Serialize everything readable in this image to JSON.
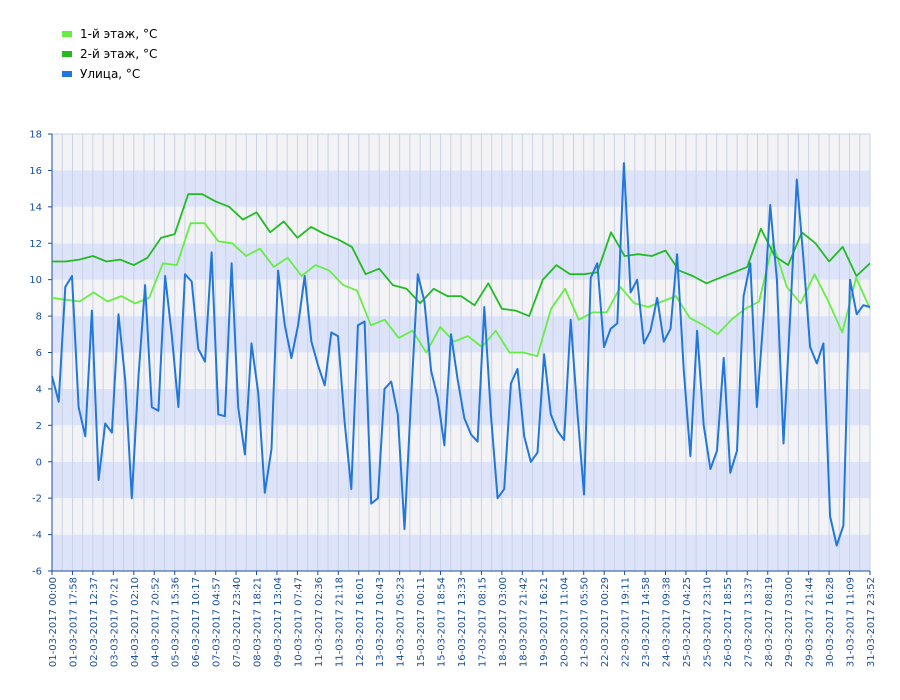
{
  "chart_data": {
    "type": "line",
    "title": "",
    "xlabel": "",
    "ylabel": "",
    "ylim": [
      -6,
      18
    ],
    "y_ticks": [
      -6,
      -4,
      -2,
      0,
      2,
      4,
      6,
      8,
      10,
      12,
      14,
      16,
      18
    ],
    "grid": true,
    "legend_position": "top-left",
    "x_tick_labels": [
      "01-03-2017 00:00",
      "01-03-2017 17:58",
      "02-03-2017 12:37",
      "03-03-2017 07:21",
      "04-03-2017 02:10",
      "04-03-2017 20:52",
      "05-03-2017 15:36",
      "06-03-2017 10:17",
      "07-03-2017 04:57",
      "07-03-2017 23:40",
      "08-03-2017 18:21",
      "09-03-2017 13:04",
      "10-03-2017 07:47",
      "11-03-2017 02:36",
      "11-03-2017 21:18",
      "12-03-2017 16:01",
      "13-03-2017 10:43",
      "14-03-2017 05:23",
      "15-03-2017 00:11",
      "15-03-2017 18:54",
      "16-03-2017 13:33",
      "17-03-2017 08:15",
      "18-03-2017 03:00",
      "18-03-2017 21:42",
      "19-03-2017 16:21",
      "20-03-2017 11:04",
      "21-03-2017 05:50",
      "22-03-2017 00:29",
      "22-03-2017 19:11",
      "23-03-2017 14:58",
      "24-03-2017 09:38",
      "25-03-2017 04:25",
      "25-03-2017 23:10",
      "26-03-2017 18:55",
      "27-03-2017 13:37",
      "28-03-2017 08:19",
      "29-03-2017 03:00",
      "29-03-2017 21:44",
      "30-03-2017 16:28",
      "31-03-2017 11:09",
      "31-03-2017 23:52"
    ],
    "series": [
      {
        "name": "1-й этаж, °C",
        "color": "#66ee44",
        "values": [
          9.0,
          8.9,
          8.8,
          9.3,
          8.8,
          9.1,
          8.7,
          9.0,
          10.9,
          10.8,
          13.1,
          13.1,
          12.1,
          12.0,
          11.3,
          11.7,
          10.7,
          11.2,
          10.2,
          10.8,
          10.5,
          9.7,
          9.4,
          7.5,
          7.8,
          6.8,
          7.2,
          6.0,
          7.4,
          6.6,
          6.9,
          6.3,
          7.2,
          6.0,
          6.0,
          5.8,
          8.4,
          9.5,
          7.8,
          8.2,
          8.2,
          9.6,
          8.7,
          8.5,
          8.8,
          9.1,
          7.9,
          7.5,
          7.0,
          7.8,
          8.4,
          8.8,
          12.0,
          9.6,
          8.7,
          10.3,
          8.8,
          7.1,
          10.1,
          8.4
        ]
      },
      {
        "name": "2-й этаж, °C",
        "color": "#22bb22",
        "values": [
          11.0,
          11.0,
          11.1,
          11.3,
          11.0,
          11.1,
          10.8,
          11.2,
          12.3,
          12.5,
          14.7,
          14.7,
          14.3,
          14.0,
          13.3,
          13.7,
          12.6,
          13.2,
          12.3,
          12.9,
          12.5,
          12.2,
          11.8,
          10.3,
          10.6,
          9.7,
          9.5,
          8.7,
          9.5,
          9.1,
          9.1,
          8.6,
          9.8,
          8.4,
          8.3,
          8.0,
          10.0,
          10.8,
          10.3,
          10.3,
          10.4,
          12.6,
          11.3,
          11.4,
          11.3,
          11.6,
          10.5,
          10.2,
          9.8,
          10.1,
          10.4,
          10.7,
          12.8,
          11.3,
          10.8,
          12.6,
          12.0,
          11.0,
          11.8,
          10.2,
          10.9
        ]
      },
      {
        "name": "Улица, °C",
        "color": "#2277dd",
        "values": [
          4.7,
          3.3,
          9.6,
          10.2,
          3.0,
          1.4,
          8.3,
          -1.0,
          2.1,
          1.6,
          8.1,
          4.5,
          -2.0,
          4.7,
          9.7,
          3.0,
          2.8,
          10.2,
          7.0,
          3.0,
          10.3,
          9.9,
          6.2,
          5.5,
          11.5,
          2.6,
          2.5,
          10.9,
          3.0,
          0.4,
          6.5,
          3.8,
          -1.7,
          0.7,
          10.5,
          7.5,
          5.7,
          7.5,
          10.2,
          6.6,
          5.3,
          4.2,
          7.1,
          6.9,
          2.2,
          -1.5,
          7.5,
          7.7,
          -2.3,
          -2.0,
          4.0,
          4.4,
          2.6,
          -3.7,
          3.5,
          10.3,
          8.8,
          5.0,
          3.5,
          0.9,
          7.0,
          4.5,
          2.4,
          1.5,
          1.1,
          8.5,
          2.6,
          -2.0,
          -1.5,
          4.3,
          5.1,
          1.4,
          0.0,
          0.5,
          5.9,
          2.6,
          1.7,
          1.2,
          7.8,
          2.7,
          -1.8,
          10.1,
          10.9,
          6.3,
          7.3,
          7.6,
          16.4,
          9.3,
          10.0,
          6.5,
          7.2,
          9.0,
          6.6,
          7.3,
          11.4,
          5.0,
          0.3,
          7.2,
          2.0,
          -0.4,
          0.6,
          5.7,
          -0.6,
          0.6,
          9.1,
          10.9,
          3.0,
          8.0,
          14.1,
          10.0,
          1.0,
          8.0,
          15.5,
          11.1,
          6.3,
          5.4,
          6.5,
          -3.0,
          -4.6,
          -3.5,
          10.0,
          8.1,
          8.6,
          8.5
        ]
      }
    ]
  }
}
